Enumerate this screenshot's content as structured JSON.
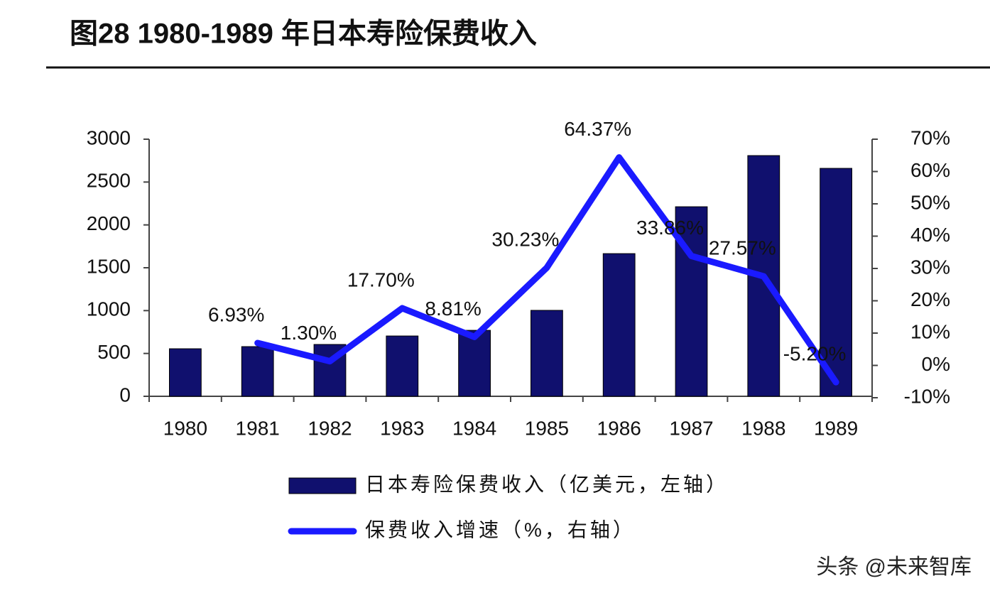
{
  "chart_data": {
    "type": "bar-line",
    "title": "图28 1980-1989 年日本寿险保费收入",
    "categories": [
      "1980",
      "1981",
      "1982",
      "1983",
      "1984",
      "1985",
      "1986",
      "1987",
      "1988",
      "1989"
    ],
    "series": [
      {
        "name": "日本寿险保费收入（亿美元，左轴）",
        "type": "bar",
        "color": "#10106e",
        "values": [
          555,
          580,
          605,
          704,
          770,
          1003,
          1665,
          2212,
          2809,
          2660
        ]
      },
      {
        "name": "保费收入增速（%，右轴）",
        "type": "line",
        "axis": "y2",
        "color": "#1a1aff",
        "values": [
          null,
          6.93,
          1.3,
          17.7,
          8.81,
          30.23,
          64.37,
          33.86,
          27.57,
          -5.2
        ],
        "value_labels": [
          null,
          "6.93%",
          "1.30%",
          "17.70%",
          "8.81%",
          "30.23%",
          "64.37%",
          "33.86%",
          "27.57%",
          "-5.20%"
        ]
      }
    ],
    "ylim": [
      0,
      3000
    ],
    "yticks": [
      0,
      500,
      1000,
      1500,
      2000,
      2500,
      3000
    ],
    "y2lim": [
      -10,
      70
    ],
    "y2ticks": [
      {
        "value": -10,
        "label": "-10%"
      },
      {
        "value": 0,
        "label": "0%"
      },
      {
        "value": 10,
        "label": "10%"
      },
      {
        "value": 20,
        "label": "20%"
      },
      {
        "value": 30,
        "label": "30%"
      },
      {
        "value": 40,
        "label": "40%"
      },
      {
        "value": 50,
        "label": "50%"
      },
      {
        "value": 60,
        "label": "60%"
      },
      {
        "value": 70,
        "label": "70%"
      }
    ],
    "watermark": "头条 @未来智库"
  }
}
